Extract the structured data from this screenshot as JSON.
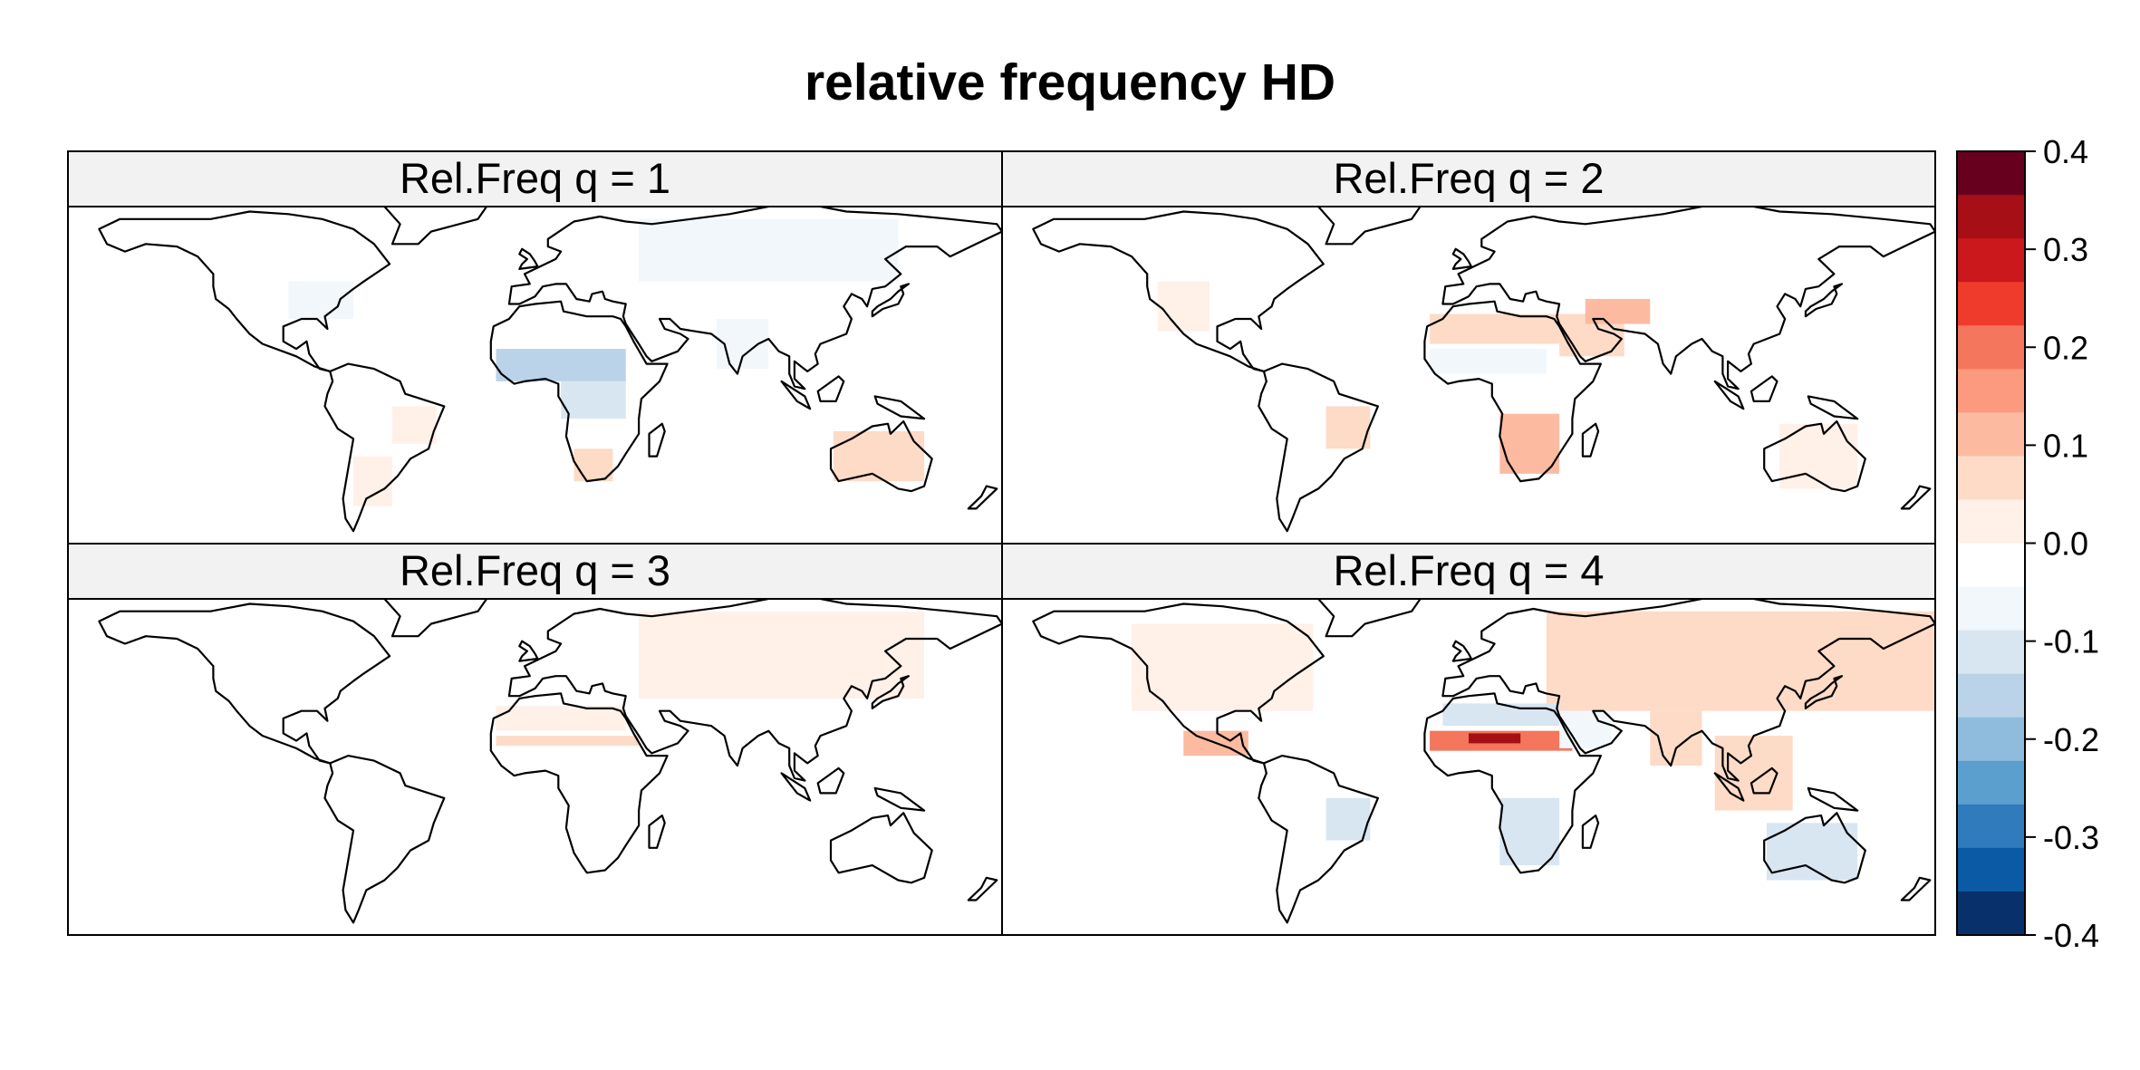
{
  "chart_data": {
    "type": "heatmap",
    "title": "relative frequency HD",
    "panels": [
      {
        "label": "Rel.Freq q = 1",
        "regions": [
          {
            "name": "north america",
            "lon": [
              -130,
              -65
            ],
            "lat": [
              30,
              62
            ],
            "value": -0.03
          },
          {
            "name": "eastern us",
            "lon": [
              -95,
              -70
            ],
            "lat": [
              30,
              45
            ],
            "value": -0.06
          },
          {
            "name": "sahel",
            "lon": [
              -15,
              35
            ],
            "lat": [
              5,
              18
            ],
            "value": -0.15
          },
          {
            "name": "central africa",
            "lon": [
              10,
              35
            ],
            "lat": [
              -10,
              5
            ],
            "value": -0.1
          },
          {
            "name": "eurasia",
            "lon": [
              40,
              140
            ],
            "lat": [
              45,
              70
            ],
            "value": -0.05
          },
          {
            "name": "india",
            "lon": [
              70,
              90
            ],
            "lat": [
              10,
              30
            ],
            "value": -0.06
          },
          {
            "name": "australia",
            "lon": [
              115,
              150
            ],
            "lat": [
              -35,
              -15
            ],
            "value": 0.08
          },
          {
            "name": "southern africa",
            "lon": [
              15,
              30
            ],
            "lat": [
              -35,
              -22
            ],
            "value": 0.06
          },
          {
            "name": "southern south america",
            "lon": [
              -70,
              -55
            ],
            "lat": [
              -45,
              -25
            ],
            "value": 0.04
          },
          {
            "name": "brazil",
            "lon": [
              -55,
              -38
            ],
            "lat": [
              -20,
              -5
            ],
            "value": 0.03
          }
        ]
      },
      {
        "label": "Rel.Freq q = 2",
        "regions": [
          {
            "name": "southern africa",
            "lon": [
              12,
              35
            ],
            "lat": [
              -32,
              -8
            ],
            "value": 0.12
          },
          {
            "name": "north africa",
            "lon": [
              -15,
              35
            ],
            "lat": [
              20,
              32
            ],
            "value": 0.08
          },
          {
            "name": "sahel",
            "lon": [
              -15,
              30
            ],
            "lat": [
              8,
              18
            ],
            "value": -0.06
          },
          {
            "name": "arabia",
            "lon": [
              35,
              60
            ],
            "lat": [
              15,
              32
            ],
            "value": 0.08
          },
          {
            "name": "iran",
            "lon": [
              45,
              70
            ],
            "lat": [
              28,
              38
            ],
            "value": 0.1
          },
          {
            "name": "brazil",
            "lon": [
              -55,
              -38
            ],
            "lat": [
              -22,
              -5
            ],
            "value": 0.06
          },
          {
            "name": "western us",
            "lon": [
              -120,
              -100
            ],
            "lat": [
              25,
              45
            ],
            "value": 0.04
          },
          {
            "name": "australia",
            "lon": [
              120,
              150
            ],
            "lat": [
              -38,
              -12
            ],
            "value": 0.04
          },
          {
            "name": "asia",
            "lon": [
              60,
              140
            ],
            "lat": [
              40,
              70
            ],
            "value": -0.02
          }
        ]
      },
      {
        "label": "Rel.Freq q = 3",
        "regions": [
          {
            "name": "eurasia",
            "lon": [
              40,
              150
            ],
            "lat": [
              35,
              70
            ],
            "value": 0.03
          },
          {
            "name": "saharan band",
            "lon": [
              -15,
              40
            ],
            "lat": [
              16,
              20
            ],
            "value": 0.07
          },
          {
            "name": "north africa",
            "lon": [
              -15,
              35
            ],
            "lat": [
              22,
              32
            ],
            "value": 0.02
          },
          {
            "name": "southern africa",
            "lon": [
              12,
              35
            ],
            "lat": [
              -30,
              -5
            ],
            "value": -0.03
          },
          {
            "name": "australia",
            "lon": [
              120,
              150
            ],
            "lat": [
              -35,
              -15
            ],
            "value": -0.03
          },
          {
            "name": "brazil",
            "lon": [
              -55,
              -42
            ],
            "lat": [
              -18,
              -8
            ],
            "value": 0.05
          },
          {
            "name": "south america",
            "lon": [
              -75,
              -40
            ],
            "lat": [
              -40,
              5
            ],
            "value": -0.02
          }
        ]
      },
      {
        "label": "Rel.Freq q = 4",
        "regions": [
          {
            "name": "eurasia",
            "lon": [
              30,
              180
            ],
            "lat": [
              30,
              70
            ],
            "value": 0.06
          },
          {
            "name": "north america",
            "lon": [
              -130,
              -60
            ],
            "lat": [
              30,
              65
            ],
            "value": 0.04
          },
          {
            "name": "sahara",
            "lon": [
              -15,
              40
            ],
            "lat": [
              14,
              22
            ],
            "value": 0.2
          },
          {
            "name": "sahara core",
            "lon": [
              0,
              20
            ],
            "lat": [
              17,
              21
            ],
            "value": 0.32
          },
          {
            "name": "north africa",
            "lon": [
              -10,
              35
            ],
            "lat": [
              24,
              33
            ],
            "value": -0.1
          },
          {
            "name": "arabia",
            "lon": [
              35,
              55
            ],
            "lat": [
              15,
              30
            ],
            "value": -0.08
          },
          {
            "name": "southern africa",
            "lon": [
              12,
              35
            ],
            "lat": [
              -32,
              -5
            ],
            "value": -0.13
          },
          {
            "name": "australia",
            "lon": [
              115,
              150
            ],
            "lat": [
              -38,
              -15
            ],
            "value": -0.13
          },
          {
            "name": "brazil",
            "lon": [
              -55,
              -38
            ],
            "lat": [
              -22,
              -5
            ],
            "value": -0.12
          },
          {
            "name": "mexico",
            "lon": [
              -110,
              -85
            ],
            "lat": [
              12,
              22
            ],
            "value": 0.12
          },
          {
            "name": "india",
            "lon": [
              70,
              90
            ],
            "lat": [
              8,
              30
            ],
            "value": 0.08
          },
          {
            "name": "southeast asia",
            "lon": [
              95,
              125
            ],
            "lat": [
              -10,
              20
            ],
            "value": 0.06
          }
        ]
      }
    ],
    "lon_range": [
      -180,
      180
    ],
    "lat_range": [
      -60,
      75
    ],
    "colorbar": {
      "ticks": [
        "0.4",
        "0.3",
        "0.2",
        "0.1",
        "0.0",
        "-0.1",
        "-0.2",
        "-0.3",
        "-0.4"
      ],
      "range": [
        -0.4,
        0.4
      ],
      "colors": [
        "#67001f",
        "#a50f15",
        "#cb181d",
        "#ef3b2c",
        "#f4765c",
        "#fb9a7e",
        "#fcbba1",
        "#fddbc7",
        "#fff0e8",
        "#ffffff",
        "#f2f7fc",
        "#d8e6f2",
        "#bad3e8",
        "#8fbcdc",
        "#5b9fcf",
        "#2f7bbb",
        "#0a5aa5",
        "#08306b"
      ]
    },
    "grid": false
  }
}
